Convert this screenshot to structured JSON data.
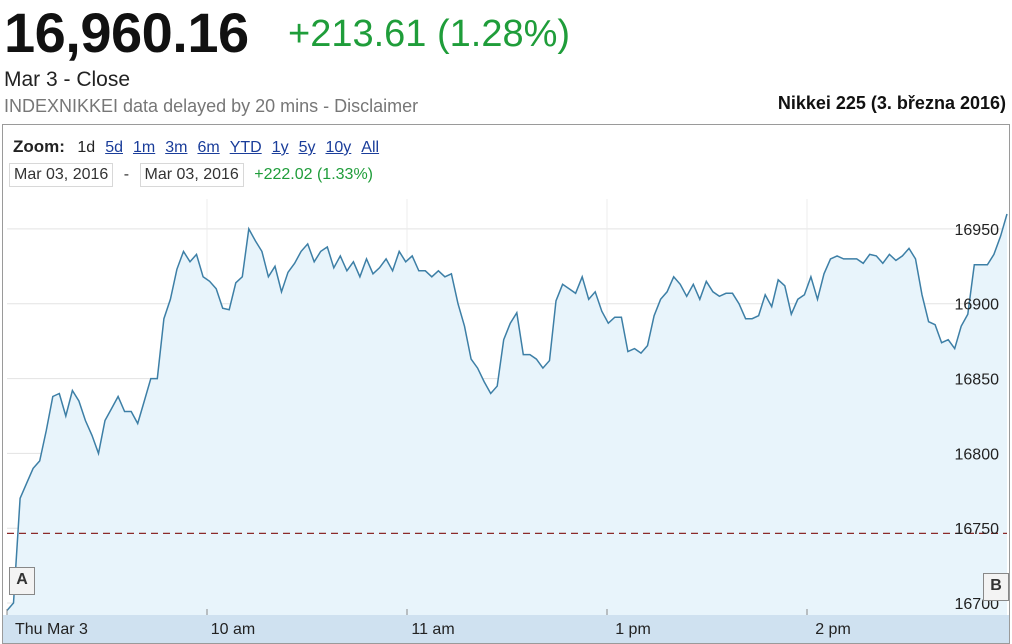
{
  "quote": {
    "price": "16,960.16",
    "change": "+213.61 (1.28%)",
    "close_label": "Mar 3 - Close",
    "source_line": "INDEXNIKKEI data delayed by 20 mins - Disclaimer",
    "caption": "Nikkei 225 (3. března 2016)"
  },
  "colors": {
    "up": "#1f9d3a",
    "line": "#3d7fa6",
    "area": "#e8f4fb",
    "prev_close": "#8b2a2a",
    "axis_band": "#cfe1f0"
  },
  "toolbar": {
    "zoom_label": "Zoom:",
    "zoom_options": [
      "1d",
      "5d",
      "1m",
      "3m",
      "6m",
      "YTD",
      "1y",
      "5y",
      "10y",
      "All"
    ],
    "active_zoom": "1d",
    "range_start": "Mar 03, 2016",
    "range_sep": "-",
    "range_end": "Mar 03, 2016",
    "range_change": "+222.02 (1.33%)"
  },
  "handles": {
    "left": "A",
    "right": "B"
  },
  "chart_data": {
    "type": "area",
    "y_ticks": [
      16700,
      16750,
      16800,
      16850,
      16900,
      16950
    ],
    "ylim": [
      16692,
      16970
    ],
    "previous_close": 16746.55,
    "x_tick_labels": [
      "Thu Mar 3",
      "10 am",
      "11 am",
      "1 pm",
      "2 pm"
    ],
    "x_tick_minutes": [
      0,
      60,
      120,
      180,
      240
    ],
    "xlim": [
      0,
      300
    ],
    "y_label_side": "right",
    "grid": true,
    "values": [
      16695,
      16700,
      16770,
      16780,
      16790,
      16795,
      16815,
      16838,
      16840,
      16825,
      16842,
      16835,
      16822,
      16812,
      16800,
      16822,
      16830,
      16838,
      16828,
      16828,
      16820,
      16835,
      16850,
      16850,
      16890,
      16903,
      16923,
      16935,
      16928,
      16933,
      16918,
      16915,
      16910,
      16897,
      16896,
      16914,
      16918,
      16950,
      16942,
      16935,
      16918,
      16925,
      16908,
      16921,
      16927,
      16935,
      16940,
      16928,
      16935,
      16938,
      16924,
      16932,
      16922,
      16928,
      16918,
      16930,
      16920,
      16924,
      16930,
      16922,
      16935,
      16928,
      16932,
      16922,
      16922,
      16918,
      16922,
      16918,
      16920,
      16900,
      16885,
      16863,
      16857,
      16848,
      16840,
      16845,
      16876,
      16887,
      16894,
      16866,
      16866,
      16863,
      16857,
      16862,
      16902,
      16913,
      16910,
      16907,
      16918,
      16903,
      16908,
      16895,
      16887,
      16891,
      16891,
      16868,
      16870,
      16867,
      16872,
      16892,
      16903,
      16908,
      16918,
      16913,
      16905,
      16913,
      16903,
      16915,
      16908,
      16905,
      16907,
      16907,
      16900,
      16890,
      16890,
      16892,
      16906,
      16898,
      16916,
      16912,
      16893,
      16903,
      16906,
      16918,
      16903,
      16920,
      16930,
      16932,
      16930,
      16930,
      16930,
      16927,
      16933,
      16932,
      16927,
      16933,
      16929,
      16932,
      16937,
      16930,
      16906,
      16888,
      16886,
      16874,
      16876,
      16870,
      16885,
      16893,
      16926,
      16926,
      16926,
      16933,
      16945,
      16960
    ]
  }
}
